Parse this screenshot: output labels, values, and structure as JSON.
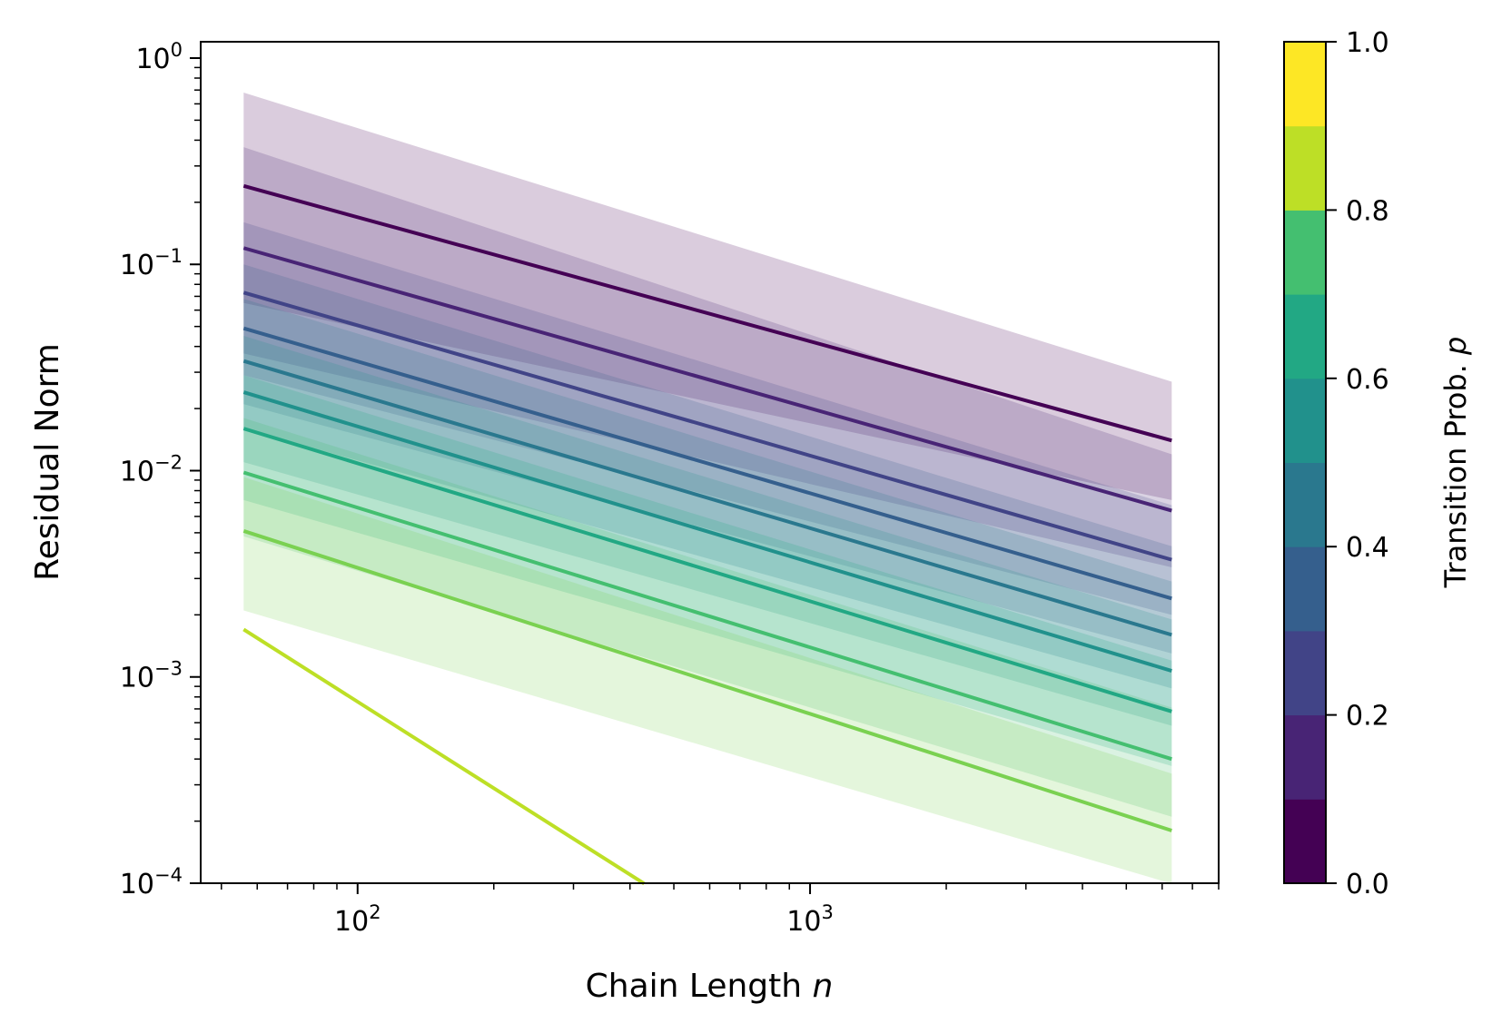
{
  "chart_data": {
    "type": "line",
    "xlabel": "Chain Length",
    "xlabel_var": "n",
    "ylabel": "Residual Norm",
    "xscale": "log",
    "yscale": "log",
    "xlim": [
      45,
      8000
    ],
    "ylim": [
      0.0001,
      1.2
    ],
    "grid": false,
    "x_ticks": [
      {
        "value": 100,
        "base": "10",
        "exp": "2"
      },
      {
        "value": 1000,
        "base": "10",
        "exp": "3"
      }
    ],
    "y_ticks": [
      {
        "value": 1,
        "base": "10",
        "exp": "0"
      },
      {
        "value": 0.1,
        "base": "10",
        "exp": "−1"
      },
      {
        "value": 0.01,
        "base": "10",
        "exp": "−2"
      },
      {
        "value": 0.001,
        "base": "10",
        "exp": "−3"
      },
      {
        "value": 0.0001,
        "base": "10",
        "exp": "−4"
      }
    ],
    "x": [
      56,
      6300
    ],
    "series": [
      {
        "p": 0.0,
        "color": "#440154",
        "values": [
          0.24,
          0.014
        ],
        "band": [
          [
            0.68,
            0.027
          ],
          [
            0.065,
            0.0072
          ]
        ]
      },
      {
        "p": 0.1,
        "color": "#482475",
        "values": [
          0.12,
          0.0064
        ],
        "band": [
          [
            0.37,
            0.012
          ],
          [
            0.037,
            0.0034
          ]
        ]
      },
      {
        "p": 0.2,
        "color": "#414487",
        "values": [
          0.073,
          0.0037
        ],
        "band": [
          [
            0.16,
            0.0068
          ],
          [
            0.029,
            0.002
          ]
        ]
      },
      {
        "p": 0.3,
        "color": "#355f8d",
        "values": [
          0.049,
          0.0024
        ],
        "band": [
          [
            0.1,
            0.0043
          ],
          [
            0.021,
            0.0013
          ]
        ]
      },
      {
        "p": 0.4,
        "color": "#2a788e",
        "values": [
          0.034,
          0.0016
        ],
        "band": [
          [
            0.068,
            0.0029
          ],
          [
            0.016,
            0.00088
          ]
        ]
      },
      {
        "p": 0.5,
        "color": "#21918c",
        "values": [
          0.024,
          0.00107
        ],
        "band": [
          [
            0.045,
            0.0019
          ],
          [
            0.011,
            0.00058
          ]
        ]
      },
      {
        "p": 0.6,
        "color": "#22a884",
        "values": [
          0.016,
          0.00068
        ],
        "band": [
          [
            0.029,
            0.0012
          ],
          [
            0.0072,
            0.00037
          ]
        ]
      },
      {
        "p": 0.7,
        "color": "#44bf70",
        "values": [
          0.0098,
          0.0004
        ],
        "band": [
          [
            0.018,
            0.00071
          ],
          [
            0.0048,
            0.00021
          ]
        ]
      },
      {
        "p": 0.8,
        "color": "#7ad151",
        "values": [
          0.0051,
          0.00018
        ],
        "band": [
          [
            0.0093,
            0.00034
          ],
          [
            0.0021,
            9.95e-05
          ]
        ]
      },
      {
        "p": 0.9,
        "color": "#bddf26",
        "values": [
          0.0017,
          9.95e-05
        ],
        "x_end": 430
      }
    ],
    "colorbar": {
      "label": "Transition Prob.",
      "label_var": "p",
      "ticks": [
        "0.0",
        "0.2",
        "0.4",
        "0.6",
        "0.8",
        "1.0"
      ],
      "range": [
        0,
        1
      ],
      "levels": [
        {
          "from": 0.0,
          "to": 0.1,
          "color": "#440154"
        },
        {
          "from": 0.1,
          "to": 0.2,
          "color": "#482475"
        },
        {
          "from": 0.2,
          "to": 0.3,
          "color": "#414487"
        },
        {
          "from": 0.3,
          "to": 0.4,
          "color": "#355f8d"
        },
        {
          "from": 0.4,
          "to": 0.5,
          "color": "#2a788e"
        },
        {
          "from": 0.5,
          "to": 0.6,
          "color": "#21918c"
        },
        {
          "from": 0.6,
          "to": 0.7,
          "color": "#22a884"
        },
        {
          "from": 0.7,
          "to": 0.8,
          "color": "#44bf70"
        },
        {
          "from": 0.8,
          "to": 0.9,
          "color": "#bddf26"
        },
        {
          "from": 0.9,
          "to": 1.0,
          "color": "#fde725"
        }
      ]
    }
  }
}
